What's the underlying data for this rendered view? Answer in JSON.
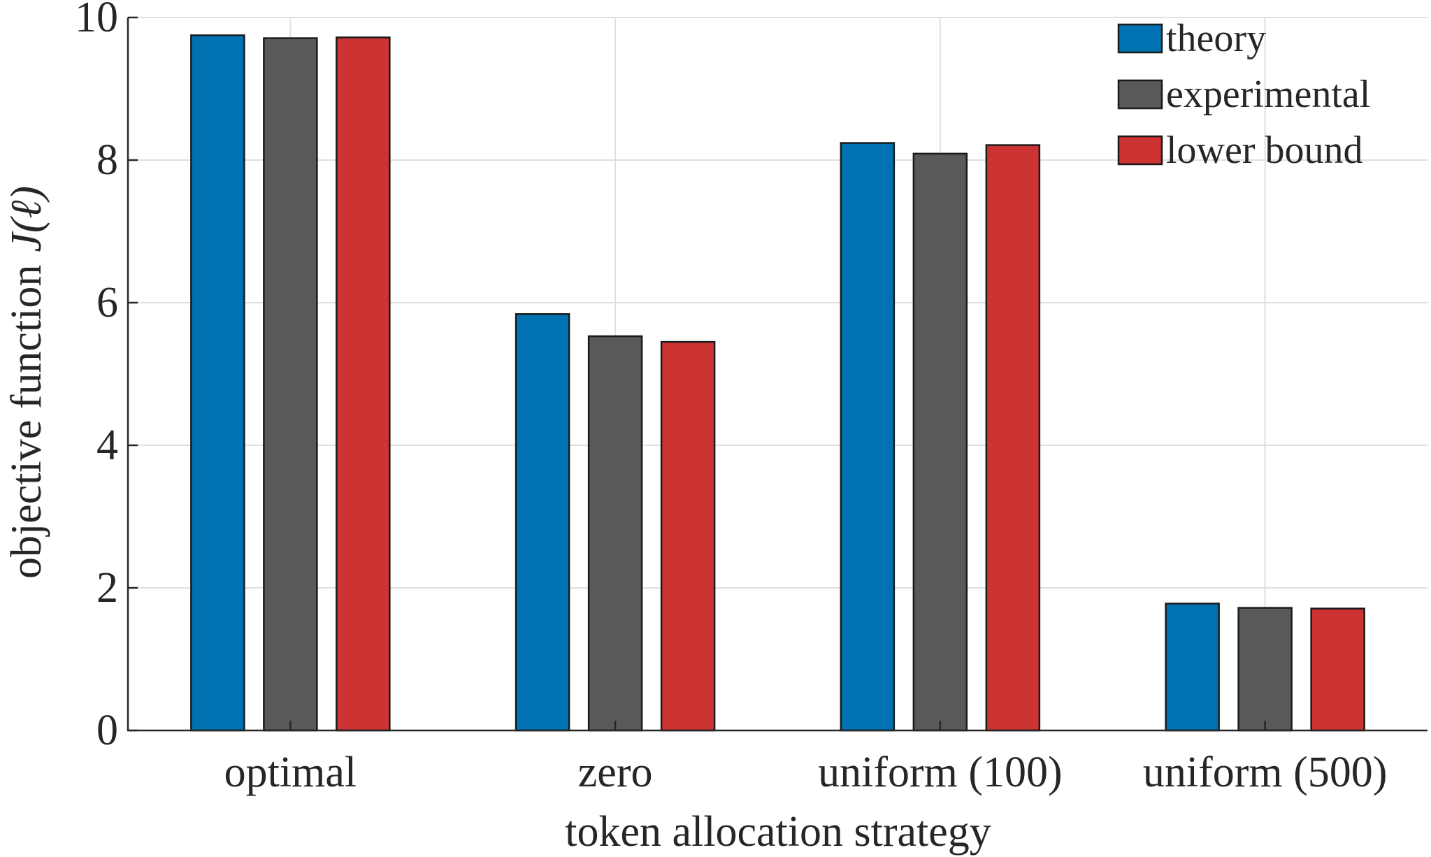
{
  "chart_data": {
    "type": "bar",
    "categories": [
      "optimal",
      "zero",
      "uniform (100)",
      "uniform (500)"
    ],
    "series": [
      {
        "name": "theory",
        "color": "#0072b2",
        "values": [
          9.75,
          5.84,
          8.24,
          1.78
        ]
      },
      {
        "name": "experimental",
        "color": "#595959",
        "values": [
          9.71,
          5.53,
          8.09,
          1.72
        ]
      },
      {
        "name": "lower bound",
        "color": "#cc3333",
        "values": [
          9.72,
          5.45,
          8.21,
          1.71
        ]
      }
    ],
    "xlabel": "token allocation strategy",
    "ylabel_text": "objective function",
    "ylabel_math": "J(ℓ)",
    "ylim": [
      0,
      10
    ],
    "yticks": [
      0,
      2,
      4,
      6,
      8,
      10
    ],
    "grid": true,
    "legend_position": "top-right"
  }
}
